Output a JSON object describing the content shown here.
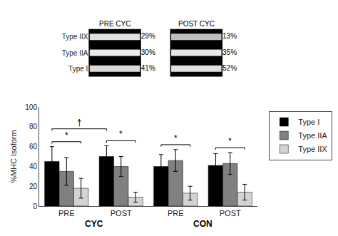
{
  "chart_data": [
    {
      "type": "bar",
      "categories": [
        "PRE",
        "POST",
        "PRE",
        "POST"
      ],
      "ylabel": "%MHC Isoform",
      "ylim": [
        0,
        100
      ],
      "yticks": [
        0,
        20,
        40,
        60,
        80,
        100
      ],
      "grid": false,
      "legend": "right",
      "series": [
        {
          "name": "Type I",
          "color": "#000000",
          "values": [
            45,
            50,
            40,
            41
          ],
          "errors": [
            15,
            11,
            12,
            12
          ]
        },
        {
          "name": "Type IIA",
          "color": "#808080",
          "values": [
            35,
            40,
            46,
            43
          ],
          "errors": [
            14,
            10,
            11,
            11
          ]
        },
        {
          "name": "Type IIX",
          "color": "#d3d3d3",
          "values": [
            18,
            9,
            13,
            14
          ],
          "errors": [
            10,
            5,
            7,
            8
          ]
        }
      ],
      "annotations": [
        {
          "text": "CYC",
          "categories": [
            0,
            1
          ]
        },
        {
          "text": "CON",
          "categories": [
            2,
            3
          ]
        },
        {
          "text": "*",
          "from": {
            "category": 0,
            "series": "Type I"
          },
          "to": {
            "category": 0,
            "series": "Type IIX"
          }
        },
        {
          "text": "*",
          "from": {
            "category": 1,
            "series": "Type I"
          },
          "to": {
            "category": 1,
            "series": "Type IIX"
          }
        },
        {
          "text": "*",
          "from": {
            "category": 2,
            "series": "Type I"
          },
          "to": {
            "category": 2,
            "series": "Type IIX"
          }
        },
        {
          "text": "*",
          "from": {
            "category": 3,
            "series": "Type I"
          },
          "to": {
            "category": 3,
            "series": "Type IIX"
          }
        },
        {
          "text": "†",
          "from": {
            "category": 0,
            "series": "Type I"
          },
          "to": {
            "category": 1,
            "series": "Type I"
          }
        }
      ]
    },
    {
      "type": "gel",
      "title": "PRE CYC",
      "categories": [
        "Type IIX",
        "Type IIA",
        "Type I"
      ],
      "values": [
        29,
        30,
        41
      ],
      "value_labels": [
        "29%",
        "30%",
        "41%"
      ],
      "data_labels": true,
      "colors": [
        "#e0e0e0",
        "#ebebeb",
        "#d9d9d9"
      ],
      "tick_labels": "y"
    },
    {
      "type": "gel",
      "title": "POST CYC",
      "categories": [
        "Type IIX",
        "Type IIA",
        "Type I"
      ],
      "values": [
        13,
        35,
        52
      ],
      "value_labels": [
        "13%",
        "35%",
        "52%"
      ],
      "data_labels": true,
      "colors": [
        "#bfbfbf",
        "#e6e6e6",
        "#e0e0e0"
      ],
      "tick_labels": false
    }
  ]
}
